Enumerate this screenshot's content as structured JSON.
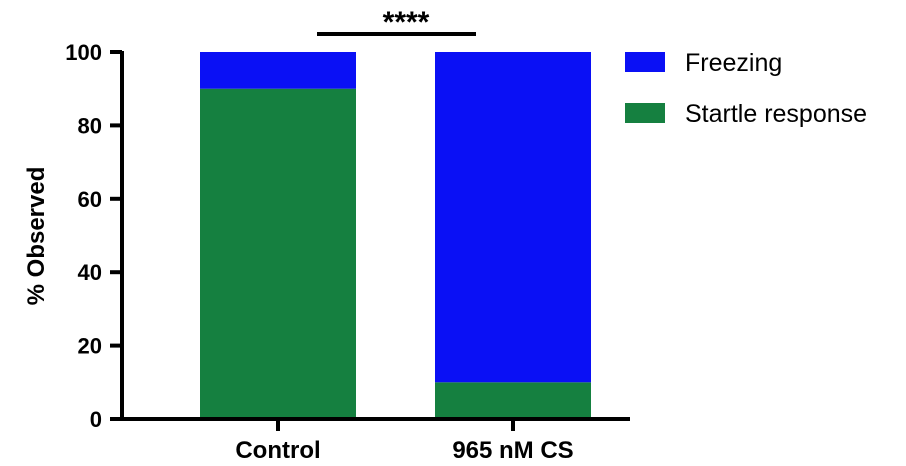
{
  "chart_data": {
    "type": "bar",
    "stacked": true,
    "title": "",
    "xlabel": "",
    "ylabel": "% Observed",
    "ylim": [
      0,
      100
    ],
    "yticks": [
      0,
      20,
      40,
      60,
      80,
      100
    ],
    "categories": [
      "Control",
      "965 nM CS"
    ],
    "series": [
      {
        "name": "Startle response",
        "values": [
          90,
          10
        ],
        "color": "#158040"
      },
      {
        "name": "Freezing",
        "values": [
          10,
          90
        ],
        "color": "#0a10f5"
      }
    ],
    "legend_order": [
      "Freezing",
      "Startle response"
    ],
    "legend_position": "top-right",
    "grid": false,
    "annotations": [
      {
        "type": "significance-bracket",
        "text": "****",
        "between": [
          "Control",
          "965 nM CS"
        ]
      }
    ]
  }
}
